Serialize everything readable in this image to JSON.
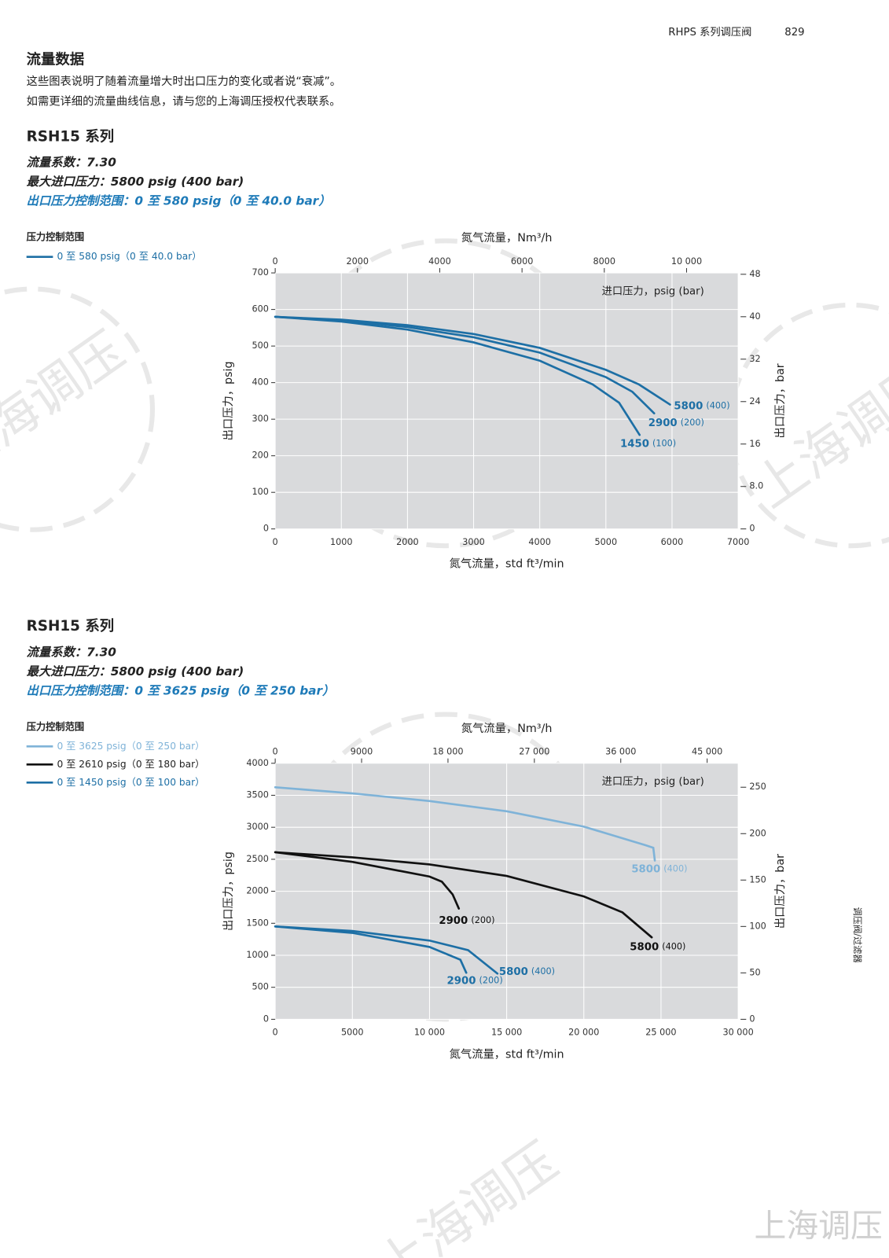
{
  "header": {
    "series_name": "RHPS 系列调压阀",
    "page_number": "829"
  },
  "intro": {
    "title": "流量数据",
    "lines": [
      "这些图表说明了随着流量增大时出口压力的变化或者说“衰减”。",
      "如需更详细的流量曲线信息，请与您的上海调压授权代表联系。"
    ]
  },
  "sections": [
    {
      "title": "RSH15 系列",
      "specs": [
        "流量系数：7.30",
        "最大进口压力：5800 psig (400 bar)",
        "出口压力控制范围：0 至 580 psig（0 至 40.0 bar）"
      ]
    },
    {
      "title": "RSH15 系列",
      "specs": [
        "流量系数：7.30",
        "最大进口压力：5800 psig (400 bar)",
        "出口压力控制范围：0 至 3625 psig（0 至 250 bar）"
      ]
    }
  ],
  "side_tab": "调压阀/过滤器",
  "watermark": "上海调压",
  "chart_data": [
    {
      "type": "line",
      "legend_title": "压力控制范围",
      "legend": [
        {
          "label": "0 至 580 psig（0 至 40.0 bar）",
          "color": "#1d6fa5"
        }
      ],
      "xlabel": "氮气流量，std ft³/min",
      "x2label": "氮气流量，Nm³/h",
      "ylabel": "出口压力，psig",
      "y2label": "出口压力，bar",
      "annotation": "进口压力，psig (bar)",
      "xlim": [
        0,
        7000
      ],
      "xticks": [
        0,
        1000,
        2000,
        3000,
        4000,
        5000,
        6000,
        7000
      ],
      "x2lim": [
        0,
        11254
      ],
      "x2ticks": [
        0,
        2000,
        4000,
        6000,
        8000,
        {
          "value": 10000,
          "label": "10 000"
        }
      ],
      "ylim": [
        0,
        700
      ],
      "yticks": [
        0,
        100,
        200,
        300,
        400,
        500,
        600,
        700
      ],
      "y2lim": [
        0,
        48.26
      ],
      "y2ticks": [
        0,
        {
          "value": 8,
          "label": "8.0"
        },
        16,
        24,
        32,
        40,
        48
      ],
      "grid": true,
      "plot_color": "#d9dadc",
      "series": [
        {
          "name": "5800",
          "note": "(400)",
          "color": "#1d6fa5",
          "x": [
            0,
            1000,
            2000,
            3000,
            4000,
            5000,
            5500,
            5970
          ],
          "values": [
            580,
            572,
            557,
            533,
            495,
            435,
            395,
            340
          ]
        },
        {
          "name": "2900",
          "note": "(200)",
          "color": "#1d6fa5",
          "x": [
            0,
            1000,
            2000,
            3000,
            4000,
            5000,
            5400,
            5730
          ],
          "values": [
            580,
            570,
            552,
            524,
            482,
            415,
            375,
            316
          ]
        },
        {
          "name": "1450",
          "note": "(100)",
          "color": "#1d6fa5",
          "x": [
            0,
            1000,
            2000,
            3000,
            4000,
            4800,
            5200,
            5510
          ],
          "values": [
            580,
            567,
            545,
            510,
            460,
            395,
            345,
            257
          ]
        }
      ]
    },
    {
      "type": "line",
      "legend_title": "压力控制范围",
      "legend": [
        {
          "label": "0 至 3625 psig（0 至 250 bar）",
          "color": "#7fb3d8"
        },
        {
          "label": "0 至 2610 psig（0 至 180 bar）",
          "color": "#111111"
        },
        {
          "label": "0 至 1450 psig（0 至 100 bar）",
          "color": "#1d6fa5"
        }
      ],
      "xlabel": "氮气流量，std ft³/min",
      "x2label": "氮气流量，Nm³/h",
      "ylabel": "出口压力，psig",
      "y2label": "出口压力，bar",
      "annotation": "进口压力，psig (bar)",
      "xlim": [
        0,
        30000
      ],
      "xticks": [
        0,
        5000,
        {
          "value": 10000,
          "label": "10 000"
        },
        {
          "value": 15000,
          "label": "15 000"
        },
        {
          "value": 20000,
          "label": "20 000"
        },
        {
          "value": 25000,
          "label": "25 000"
        },
        {
          "value": 30000,
          "label": "30 000"
        }
      ],
      "x2lim": [
        0,
        48231
      ],
      "x2ticks": [
        0,
        9000,
        {
          "value": 18000,
          "label": "18 000"
        },
        {
          "value": 27000,
          "label": "27 000"
        },
        {
          "value": 36000,
          "label": "36 000"
        },
        {
          "value": 45000,
          "label": "45 000"
        }
      ],
      "ylim": [
        0,
        4000
      ],
      "yticks": [
        0,
        500,
        1000,
        1500,
        2000,
        2500,
        3000,
        3500,
        4000
      ],
      "y2lim": [
        0,
        275.8
      ],
      "y2ticks": [
        0,
        50,
        100,
        150,
        200,
        250
      ],
      "grid": true,
      "plot_color": "#d9dadc",
      "series": [
        {
          "name": "5800",
          "note": "(400)",
          "color": "#7fb3d8",
          "x": [
            0,
            5000,
            10000,
            15000,
            20000,
            24000,
            24500,
            24600
          ],
          "values": [
            3625,
            3530,
            3410,
            3250,
            3010,
            2720,
            2680,
            2480
          ]
        },
        {
          "name": "2900",
          "note": "(200)",
          "color": "#111111",
          "x": [
            0,
            5000,
            10000,
            10800,
            11500,
            11900
          ],
          "values": [
            2610,
            2460,
            2230,
            2150,
            1950,
            1730
          ]
        },
        {
          "name": "5800",
          "note": "(400)",
          "color": "#111111",
          "x": [
            0,
            5000,
            10000,
            15000,
            20000,
            22500,
            24400
          ],
          "values": [
            2610,
            2530,
            2420,
            2240,
            1920,
            1670,
            1280
          ]
        },
        {
          "name": "2900",
          "note": "(200)",
          "color": "#1d6fa5",
          "x": [
            0,
            5000,
            10000,
            12000,
            12380
          ],
          "values": [
            1450,
            1350,
            1130,
            930,
            727
          ]
        },
        {
          "name": "5800",
          "note": "(400)",
          "color": "#1d6fa5",
          "x": [
            0,
            5000,
            10000,
            12500,
            14400
          ],
          "values": [
            1450,
            1380,
            1230,
            1080,
            714
          ]
        }
      ]
    }
  ]
}
